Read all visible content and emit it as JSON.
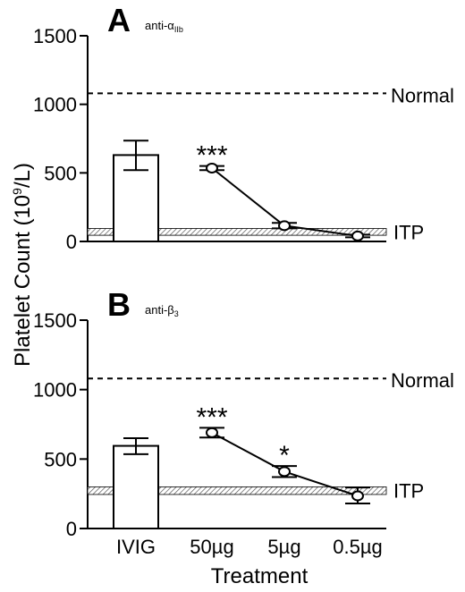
{
  "figure": {
    "ylabel": "Platelet Count (10 9/L)",
    "ylabel_main": "Platelet Count (10",
    "ylabel_exp": "9",
    "ylabel_tail": "/L)",
    "xlabel": "Treatment"
  },
  "chart_data": [
    {
      "type": "bar",
      "panel_letter": "A",
      "panel_subtitle": "anti-αIIb",
      "subtitle_base": "anti-α",
      "subtitle_sub": "IIb",
      "ylim": [
        0,
        1500
      ],
      "yticks": [
        "0",
        "500",
        "1000",
        "1500"
      ],
      "categories": [
        "IVIG",
        "50µg",
        "5µg",
        "0.5µg"
      ],
      "bar": {
        "category": "IVIG",
        "value": 630,
        "err_low": 520,
        "err_high": 735
      },
      "series": [
        {
          "type": "line",
          "x": [
            "50µg",
            "5µg",
            "0.5µg"
          ],
          "values": [
            535,
            115,
            40
          ],
          "err_low": [
            520,
            95,
            30
          ],
          "err_high": [
            550,
            135,
            50
          ]
        }
      ],
      "significance": [
        {
          "category": "50µg",
          "label": "***"
        }
      ],
      "reference_lines": [
        {
          "label": "Normal",
          "value": 1080,
          "style": "dashed"
        }
      ],
      "reference_bands": [
        {
          "label": "ITP",
          "low": 45,
          "high": 95
        }
      ]
    },
    {
      "type": "bar",
      "panel_letter": "B",
      "panel_subtitle": "anti-β3",
      "subtitle_base": "anti-β",
      "subtitle_sub": "3",
      "ylim": [
        0,
        1500
      ],
      "yticks": [
        "0",
        "500",
        "1000",
        "1500"
      ],
      "categories": [
        "IVIG",
        "50µg",
        "5µg",
        "0.5µg"
      ],
      "bar": {
        "category": "IVIG",
        "value": 595,
        "err_low": 535,
        "err_high": 650
      },
      "series": [
        {
          "type": "line",
          "x": [
            "50µg",
            "5µg",
            "0.5µg"
          ],
          "values": [
            690,
            410,
            235
          ],
          "err_low": [
            655,
            370,
            180
          ],
          "err_high": [
            725,
            450,
            295
          ]
        }
      ],
      "significance": [
        {
          "category": "50µg",
          "label": "***"
        },
        {
          "category": "5µg",
          "label": "*"
        }
      ],
      "reference_lines": [
        {
          "label": "Normal",
          "value": 1080,
          "style": "dashed"
        }
      ],
      "reference_bands": [
        {
          "label": "ITP",
          "low": 245,
          "high": 300
        }
      ]
    }
  ]
}
